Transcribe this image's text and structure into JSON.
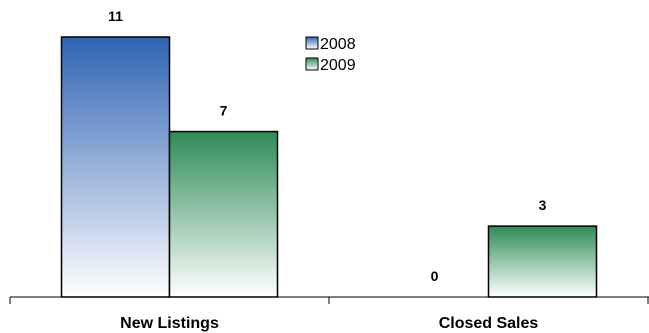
{
  "chart_data": {
    "type": "bar",
    "categories": [
      "New Listings",
      "Closed Sales"
    ],
    "series": [
      {
        "name": "2008",
        "values": [
          11,
          0
        ],
        "color_top": "#2f63b4",
        "color_bottom": "#ffffff"
      },
      {
        "name": "2009",
        "values": [
          7,
          3
        ],
        "color_top": "#2e8b57",
        "color_bottom": "#ffffff"
      }
    ],
    "title": "",
    "xlabel": "",
    "ylabel": "",
    "ylim": [
      0,
      11
    ],
    "grid": false,
    "legend": "top-center"
  }
}
